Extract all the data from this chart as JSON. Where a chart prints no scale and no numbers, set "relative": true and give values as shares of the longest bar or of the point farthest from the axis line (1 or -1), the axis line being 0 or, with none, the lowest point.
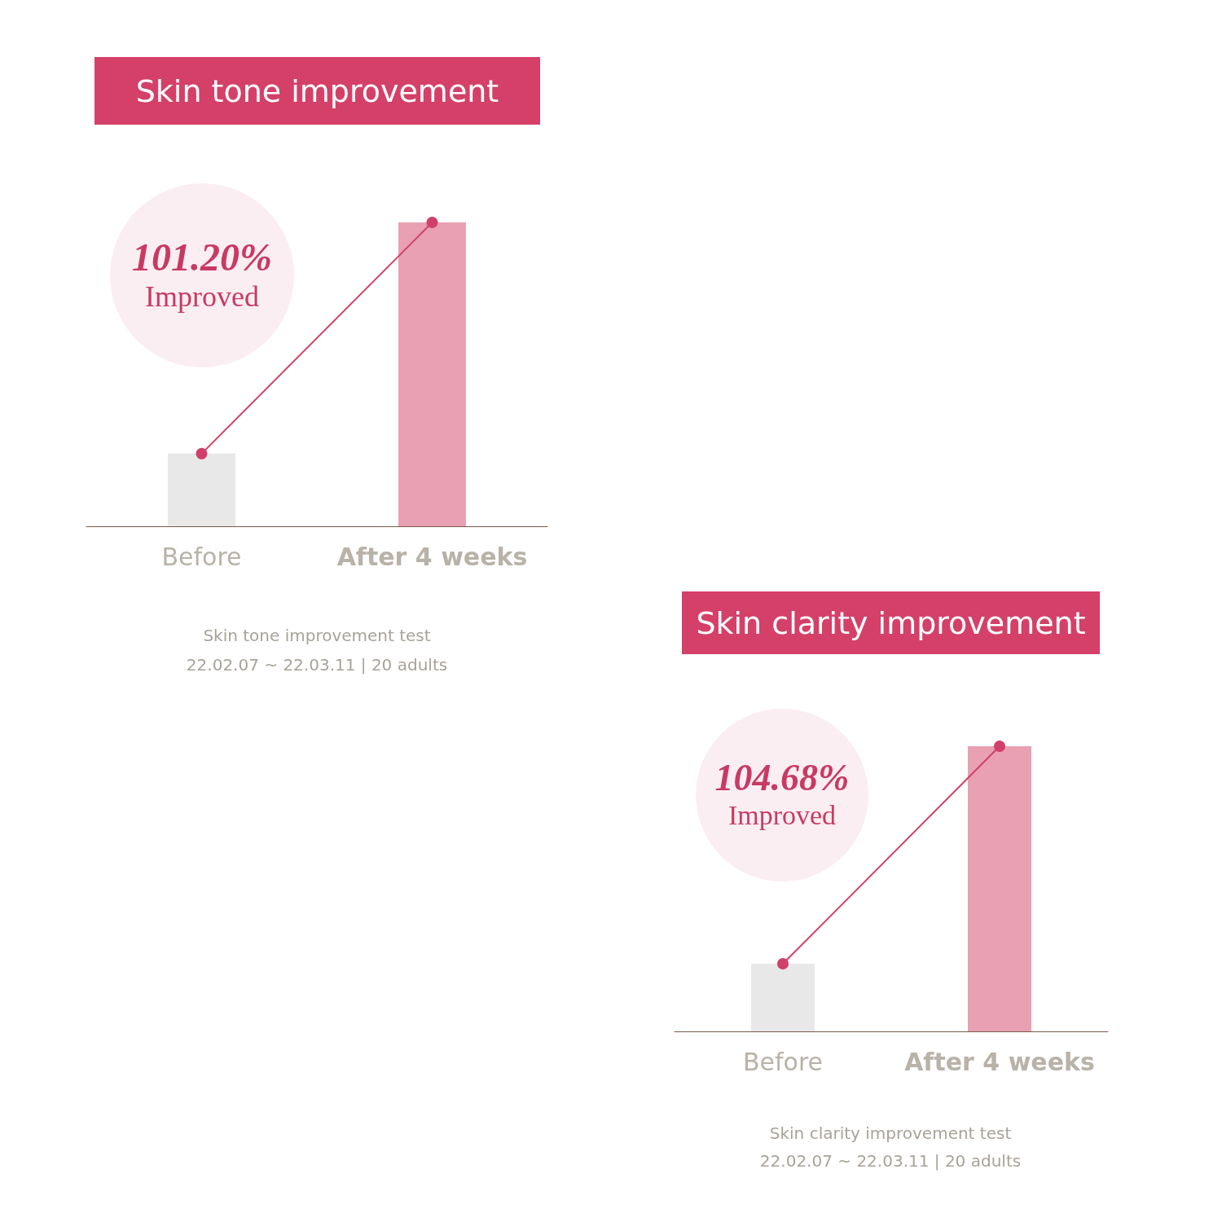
{
  "chart_data": [
    {
      "type": "bar",
      "title": "Skin tone improvement",
      "categories": [
        "Before",
        "After 4 weeks"
      ],
      "relative": true,
      "series": [
        {
          "colors": [
            "#e8e8e8",
            "#e8a0b2"
          ],
          "values": [
            0.239,
            1
          ]
        },
        {
          "type": "line",
          "color": "#d0406a",
          "marker": "circle",
          "values": [
            0.239,
            1
          ]
        }
      ],
      "annotations": [
        "101.20%",
        "Improved",
        "Skin tone improvement test",
        "22.02.07 ~ 22.03.11 | 20 adults"
      ]
    },
    {
      "type": "bar",
      "title": "Skin clarity improvement",
      "categories": [
        "Before",
        "After 4 weeks"
      ],
      "relative": true,
      "series": [
        {
          "colors": [
            "#e8e8e8",
            "#e8a0b2"
          ],
          "values": [
            0.237,
            1
          ]
        },
        {
          "type": "line",
          "color": "#d0406a",
          "marker": "circle",
          "values": [
            0.237,
            1
          ]
        }
      ],
      "annotations": [
        "104.68%",
        "Improved",
        "Skin clarity improvement test",
        "22.02.07 ~ 22.03.11 | 20 adults"
      ]
    }
  ]
}
